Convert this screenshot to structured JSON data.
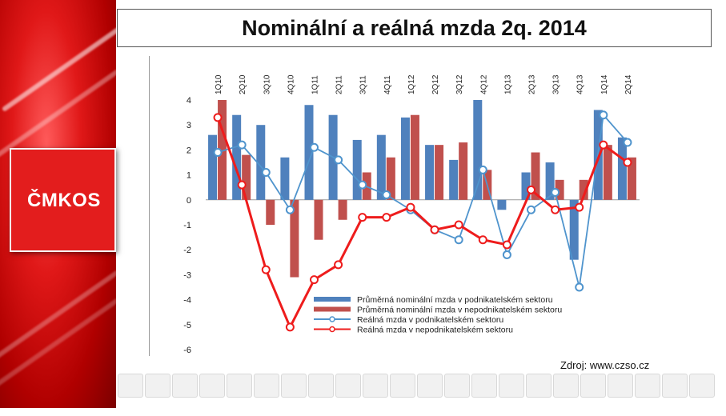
{
  "title": "Nominální a reálná mzda  2q. 2014",
  "logo": "ČMKOS",
  "source": "Zdroj: www.czso.cz",
  "colors": {
    "nominal_business": "#4f81bd",
    "nominal_nonbusiness": "#c0504d",
    "real_business": "#4f94cd",
    "real_nonbusiness": "#ee1c1c",
    "panel_red": "#e31d1d"
  },
  "chart_data": {
    "type": "bar+line",
    "categories": [
      "1.Q 2010",
      "2.Q 2010",
      "3.Q 2010",
      "4.Q 2010",
      "1.Q 2011",
      "2.Q 2011",
      "3.Q 2011",
      "4.Q 2011",
      "1.Q 2012",
      "2.Q 2012",
      "3.Q 2012",
      "4.Q 2012",
      "1.Q 2013",
      "2.Q 2013",
      "3.Q 2013",
      "4.Q 2013",
      "1.Q 2014",
      "2.Q 2014"
    ],
    "tick_labels": [
      "1Q10",
      "2Q10",
      "3Q10",
      "4Q10",
      "1Q11",
      "2Q11",
      "3Q11",
      "4Q11",
      "1Q12",
      "2Q12",
      "3Q12",
      "4Q12",
      "1Q13",
      "2Q13",
      "3Q13",
      "4Q13",
      "1Q14",
      "2Q14"
    ],
    "ylim": [
      -6,
      4
    ],
    "yticks": [
      "-6",
      "-5",
      "-4",
      "-3",
      "-2",
      "-1",
      "0",
      "1",
      "2",
      "3",
      "4"
    ],
    "series": [
      {
        "name": "Průměrná nominální mzda v podnikatelském sektoru",
        "kind": "bar",
        "color": "#4f81bd",
        "values": [
          2.6,
          3.4,
          3.0,
          1.7,
          3.8,
          3.4,
          2.4,
          2.6,
          3.3,
          2.2,
          1.6,
          4.0,
          -0.4,
          1.1,
          1.5,
          -2.4,
          3.6,
          2.5
        ]
      },
      {
        "name": "Průměrná nominální mzda v nepodnikatelském sektoru",
        "kind": "bar",
        "color": "#c0504d",
        "values": [
          4.0,
          1.8,
          -1.0,
          -3.1,
          -1.6,
          -0.8,
          1.1,
          1.7,
          3.4,
          2.2,
          2.3,
          1.2,
          0.0,
          1.9,
          0.8,
          0.8,
          2.2,
          1.7
        ]
      },
      {
        "name": "Reálná mzda v podnikatelském sektoru",
        "kind": "line",
        "color": "#4f94cd",
        "values": [
          1.9,
          2.2,
          1.1,
          -0.4,
          2.1,
          1.6,
          0.6,
          0.2,
          -0.4,
          -1.2,
          -1.6,
          1.2,
          -2.2,
          -0.4,
          0.3,
          -3.5,
          3.4,
          2.3
        ]
      },
      {
        "name": "Reálná mzda v nepodnikatelském sektoru",
        "kind": "line",
        "color": "#ee1c1c",
        "values": [
          3.3,
          0.6,
          -2.8,
          -5.1,
          -3.2,
          -2.6,
          -0.7,
          -0.7,
          -0.3,
          -1.2,
          -1.0,
          -1.6,
          -1.8,
          0.4,
          -0.4,
          -0.3,
          2.2,
          1.5
        ]
      }
    ]
  },
  "footer_logos": [
    "union-logo-1",
    "union-logo-2",
    "union-logo-3",
    "union-logo-4",
    "union-logo-5",
    "union-logo-6",
    "union-logo-7",
    "union-logo-8",
    "union-logo-9",
    "union-logo-10",
    "union-logo-11",
    "union-logo-12",
    "union-logo-13",
    "union-logo-14",
    "union-logo-15",
    "union-logo-16",
    "union-logo-17",
    "union-logo-18",
    "union-logo-19",
    "union-logo-20",
    "union-logo-21",
    "union-logo-22"
  ]
}
